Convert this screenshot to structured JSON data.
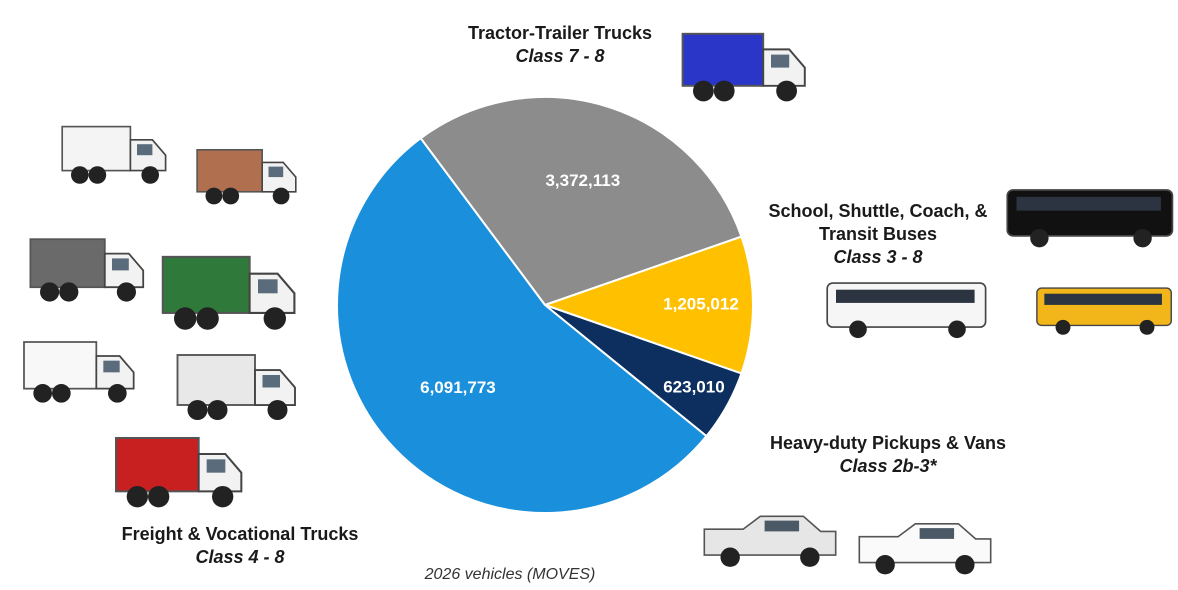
{
  "chart_data": {
    "type": "pie",
    "categories": [
      "Tractor-Trailer Trucks",
      "School, Shuttle, Coach, & Transit Buses",
      "Heavy-duty Pickups & Vans",
      "Freight & Vocational Trucks"
    ],
    "classes": [
      "Class 7 - 8",
      "Class 3 - 8",
      "Class 2b-3*",
      "Class 4 - 8"
    ],
    "values": [
      3372113,
      1205012,
      623010,
      6091773
    ],
    "value_labels": [
      "3,372,113",
      "1,205,012",
      "623,010",
      "6,091,773"
    ],
    "colors": [
      "#8c8c8c",
      "#ffc000",
      "#0c2f5f",
      "#1a8fdc"
    ],
    "note": "2026 vehicles (MOVES)"
  }
}
